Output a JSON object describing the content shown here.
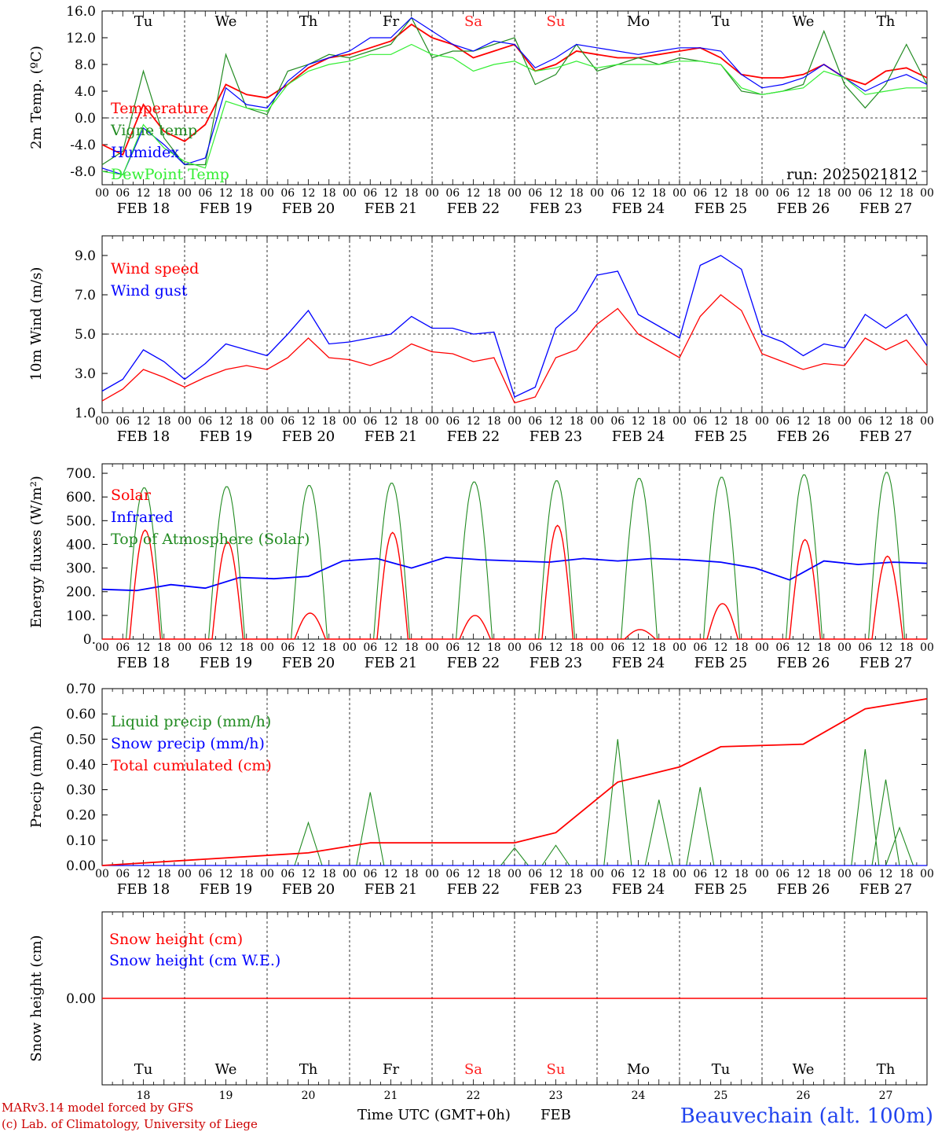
{
  "colors": {
    "red": "#ff0000",
    "dark_green": "#228b22",
    "blue": "#0000ff",
    "light_green": "#33ee33",
    "day_weekend": "#ff2020",
    "station": "#2244ee",
    "credit": "#cc0000"
  },
  "x_axis": {
    "hour_labels": [
      "00",
      "06",
      "12",
      "18"
    ],
    "end_label": "00",
    "date_labels": [
      "FEB 18",
      "FEB 19",
      "FEB 20",
      "FEB 21",
      "FEB 22",
      "FEB 23",
      "FEB 24",
      "FEB 25",
      "FEB 26",
      "FEB 27"
    ],
    "day_abbrev": [
      "Tu",
      "We",
      "Th",
      "Fr",
      "Sa",
      "Su",
      "Mo",
      "Tu",
      "We",
      "Th"
    ],
    "weekend": [
      false,
      false,
      false,
      false,
      true,
      true,
      false,
      false,
      false,
      false
    ],
    "day_numbers": [
      "18",
      "19",
      "20",
      "21",
      "22",
      "23",
      "24",
      "25",
      "26",
      "27"
    ],
    "title": "Time UTC (GMT+0h)",
    "month": "FEB"
  },
  "footer": {
    "credit_line1": "MARv3.14 model forced by GFS",
    "credit_line2": "(c) Lab. of Climatology, University of Liege",
    "station": "Beauvechain (alt. 100m)"
  },
  "chart_data": [
    {
      "type": "line",
      "ylabel": "2m Temp. (ºC)",
      "ylim": [
        -10,
        16
      ],
      "yticks": [
        "-8.0",
        "-4.0",
        "0.0",
        "4.0",
        "8.0",
        "12.0",
        "16.0"
      ],
      "annotation": "run: 2025021812",
      "x": [
        0,
        6,
        12,
        18,
        24,
        30,
        36,
        42,
        48,
        54,
        60,
        66,
        72,
        78,
        84,
        90,
        96,
        102,
        108,
        114,
        120,
        126,
        132,
        138,
        144,
        150,
        156,
        162,
        168,
        174,
        180,
        186,
        192,
        198,
        204,
        210,
        216,
        222,
        228,
        234,
        240
      ],
      "series": [
        {
          "name": "Temperature",
          "color": "red",
          "values": [
            -4,
            -5.5,
            2,
            -2,
            -3.5,
            -1,
            5,
            3.5,
            3,
            5,
            7.5,
            9,
            9.5,
            10.5,
            11.5,
            14,
            12,
            11,
            9,
            10,
            11,
            7,
            8,
            10,
            9.5,
            9,
            9,
            9.5,
            10,
            10.5,
            9,
            6.5,
            6,
            6,
            6.5,
            8,
            6,
            5,
            7,
            7.5,
            6
          ]
        },
        {
          "name": "Vigne temp",
          "color": "dark_green",
          "values": [
            -7,
            -5,
            7,
            -3,
            -7,
            -7,
            9.5,
            1.5,
            0.5,
            7,
            8,
            9.5,
            9,
            10,
            11,
            15,
            9,
            10,
            10,
            11,
            12,
            5,
            6.5,
            11,
            7,
            8,
            9,
            8,
            9,
            8.5,
            8,
            4,
            3.5,
            4,
            5,
            13,
            5,
            1.5,
            5,
            11,
            5
          ]
        },
        {
          "name": "Humidex",
          "color": "blue",
          "values": [
            -7.5,
            -8.5,
            -1.5,
            -4,
            -7,
            -6,
            4.5,
            2,
            1.5,
            5.5,
            8,
            9,
            10,
            12,
            12,
            15,
            13,
            11,
            10,
            11.5,
            11,
            7.5,
            9,
            11,
            10.5,
            10,
            9.5,
            10,
            10.5,
            10.5,
            10,
            6.5,
            4.5,
            5,
            6,
            8,
            6,
            4,
            5.5,
            6.5,
            5
          ]
        },
        {
          "name": "DewPoint Temp",
          "color": "light_green",
          "values": [
            -8,
            -8.5,
            -1,
            -4.5,
            -6.5,
            -7.5,
            2.5,
            1.5,
            1,
            5,
            7,
            8,
            8.5,
            9.5,
            9.5,
            11,
            9.5,
            9,
            7,
            8,
            8.5,
            7,
            7.5,
            8.5,
            7.5,
            8,
            8,
            8,
            8.5,
            8.5,
            8,
            4.5,
            3.5,
            4,
            4.5,
            7,
            6,
            3.5,
            4,
            4.5,
            4.5
          ]
        }
      ]
    },
    {
      "type": "line",
      "ylabel": "10m Wind (m/s)",
      "ylim": [
        1,
        10
      ],
      "yticks": [
        "1.0",
        "3.0",
        "5.0",
        "7.0",
        "9.0"
      ],
      "x": [
        0,
        6,
        12,
        18,
        24,
        30,
        36,
        42,
        48,
        54,
        60,
        66,
        72,
        78,
        84,
        90,
        96,
        102,
        108,
        114,
        120,
        126,
        132,
        138,
        144,
        150,
        156,
        162,
        168,
        174,
        180,
        186,
        192,
        198,
        204,
        210,
        216,
        222,
        228,
        234,
        240
      ],
      "series": [
        {
          "name": "Wind speed",
          "color": "red",
          "values": [
            1.6,
            2.2,
            3.2,
            2.8,
            2.3,
            2.8,
            3.2,
            3.4,
            3.2,
            3.8,
            4.8,
            3.8,
            3.7,
            3.4,
            3.8,
            4.5,
            4.1,
            4.0,
            3.6,
            3.8,
            1.5,
            1.8,
            3.8,
            4.2,
            5.5,
            6.3,
            5.0,
            4.4,
            3.8,
            5.9,
            7.0,
            6.2,
            4.0,
            3.6,
            3.2,
            3.5,
            3.4,
            4.8,
            4.2,
            4.7,
            3.4
          ]
        },
        {
          "name": "Wind gust",
          "color": "blue",
          "values": [
            2.1,
            2.7,
            4.2,
            3.6,
            2.7,
            3.5,
            4.5,
            4.2,
            3.9,
            5.0,
            6.2,
            4.5,
            4.6,
            4.8,
            5.0,
            5.9,
            5.3,
            5.3,
            5.0,
            5.1,
            1.8,
            2.3,
            5.3,
            6.2,
            8.0,
            8.2,
            6.0,
            5.4,
            4.8,
            8.5,
            9.0,
            8.3,
            5.0,
            4.6,
            3.9,
            4.5,
            4.3,
            6.0,
            5.3,
            6.0,
            4.4
          ]
        }
      ]
    },
    {
      "type": "line",
      "ylabel": "Energy fluxes (W/m²)",
      "ylim": [
        0,
        740
      ],
      "yticks": [
        "0.",
        "100.",
        "200.",
        "300.",
        "400.",
        "500.",
        "600.",
        "700."
      ],
      "solar_peaks": [
        460,
        410,
        110,
        450,
        100,
        480,
        40,
        150,
        420,
        350
      ],
      "toa_peaks": [
        640,
        645,
        650,
        660,
        665,
        670,
        680,
        685,
        695,
        705
      ],
      "series": [
        {
          "name": "Solar",
          "color": "red",
          "values": [
            460,
            410,
            110,
            450,
            100,
            480,
            40,
            150,
            420,
            350
          ]
        },
        {
          "name": "Infrared",
          "color": "blue",
          "values": [
            210,
            205,
            230,
            215,
            260,
            255,
            265,
            330,
            340,
            300,
            345,
            335,
            330,
            325,
            340,
            330,
            340,
            335,
            325,
            300,
            250,
            330,
            315,
            325,
            320
          ]
        },
        {
          "name": "Top of Atmosphere (Solar)",
          "color": "dark_green",
          "values": [
            640,
            645,
            650,
            660,
            665,
            670,
            680,
            685,
            695,
            705
          ]
        }
      ]
    },
    {
      "type": "line",
      "ylabel": "Precip (mm/h)",
      "ylim": [
        0,
        0.7
      ],
      "yticks": [
        "0.00",
        "0.10",
        "0.20",
        "0.30",
        "0.40",
        "0.50",
        "0.60",
        "0.70"
      ],
      "series": [
        {
          "name": "Liquid precip (mm/h)",
          "color": "dark_green",
          "values": [
            0.03,
            0.17,
            0.29,
            0.07,
            0.08,
            0.5,
            0.26,
            0.31,
            0.46,
            0.34,
            0.15
          ]
        },
        {
          "name": "Snow precip (mm/h)",
          "color": "blue",
          "values": [
            0,
            0,
            0,
            0,
            0,
            0,
            0,
            0,
            0,
            0,
            0
          ]
        },
        {
          "name": "Total cumulated (cm)",
          "color": "red",
          "values": [
            0,
            0.05,
            0.09,
            0.09,
            0.11,
            0.13,
            0.33,
            0.39,
            0.47,
            0.48,
            0.62,
            0.66
          ]
        }
      ]
    },
    {
      "type": "line",
      "ylabel": "Snow height (cm)",
      "yticks": [
        "0.00"
      ],
      "series": [
        {
          "name": "Snow height (cm)",
          "color": "red",
          "values": [
            0
          ]
        },
        {
          "name": "Snow height (cm W.E.)",
          "color": "blue",
          "values": [
            0
          ]
        }
      ]
    }
  ]
}
